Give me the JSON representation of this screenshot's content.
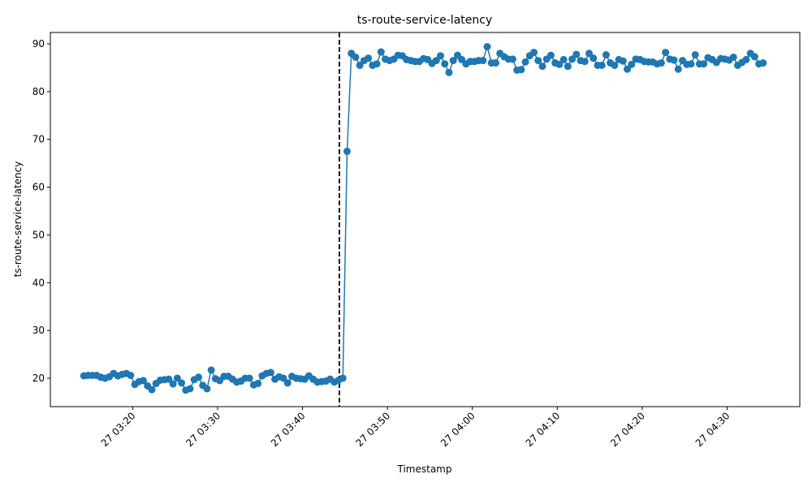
{
  "chart_data": {
    "type": "line",
    "title": "ts-route-service-latency",
    "x_label": "Timestamp",
    "y_label": "ts-route-service-latency",
    "x": [
      "27 03:14:15",
      "27 03:14:45",
      "27 03:15:15",
      "27 03:15:45",
      "27 03:16:15",
      "27 03:16:45",
      "27 03:17:15",
      "27 03:17:45",
      "27 03:18:15",
      "27 03:18:45",
      "27 03:19:15",
      "27 03:19:45",
      "27 03:20:15",
      "27 03:20:45",
      "27 03:21:15",
      "27 03:21:45",
      "27 03:22:15",
      "27 03:22:45",
      "27 03:23:15",
      "27 03:23:45",
      "27 03:24:15",
      "27 03:24:45",
      "27 03:25:15",
      "27 03:25:45",
      "27 03:26:15",
      "27 03:26:45",
      "27 03:27:15",
      "27 03:27:45",
      "27 03:28:15",
      "27 03:28:45",
      "27 03:29:15",
      "27 03:29:45",
      "27 03:30:15",
      "27 03:30:45",
      "27 03:31:15",
      "27 03:31:45",
      "27 03:32:15",
      "27 03:32:45",
      "27 03:33:15",
      "27 03:33:45",
      "27 03:34:15",
      "27 03:34:45",
      "27 03:35:15",
      "27 03:35:45",
      "27 03:36:15",
      "27 03:36:45",
      "27 03:37:15",
      "27 03:37:45",
      "27 03:38:15",
      "27 03:38:45",
      "27 03:39:15",
      "27 03:39:45",
      "27 03:40:15",
      "27 03:40:45",
      "27 03:41:15",
      "27 03:41:45",
      "27 03:42:15",
      "27 03:42:45",
      "27 03:43:15",
      "27 03:43:45",
      "27 03:44:15",
      "27 03:44:45",
      "27 03:45:15",
      "27 03:45:45",
      "27 03:46:15",
      "27 03:46:45",
      "27 03:47:15",
      "27 03:47:45",
      "27 03:48:15",
      "27 03:48:45",
      "27 03:49:15",
      "27 03:49:45",
      "27 03:50:15",
      "27 03:50:45",
      "27 03:51:15",
      "27 03:51:45",
      "27 03:52:15",
      "27 03:52:45",
      "27 03:53:15",
      "27 03:53:45",
      "27 03:54:15",
      "27 03:54:45",
      "27 03:55:15",
      "27 03:55:45",
      "27 03:56:15",
      "27 03:56:45",
      "27 03:57:15",
      "27 03:57:45",
      "27 03:58:15",
      "27 03:58:45",
      "27 03:59:15",
      "27 03:59:45",
      "27 04:00:15",
      "27 04:00:45",
      "27 04:01:15",
      "27 04:01:45",
      "27 04:02:15",
      "27 04:02:45",
      "27 04:03:15",
      "27 04:03:45",
      "27 04:04:15",
      "27 04:04:45",
      "27 04:05:15",
      "27 04:05:45",
      "27 04:06:15",
      "27 04:06:45",
      "27 04:07:15",
      "27 04:07:45",
      "27 04:08:15",
      "27 04:08:45",
      "27 04:09:15",
      "27 04:09:45",
      "27 04:10:15",
      "27 04:10:45",
      "27 04:11:15",
      "27 04:11:45",
      "27 04:12:15",
      "27 04:12:45",
      "27 04:13:15",
      "27 04:13:45",
      "27 04:14:15",
      "27 04:14:45",
      "27 04:15:15",
      "27 04:15:45",
      "27 04:16:15",
      "27 04:16:45",
      "27 04:17:15",
      "27 04:17:45",
      "27 04:18:15",
      "27 04:18:45",
      "27 04:19:15",
      "27 04:19:45",
      "27 04:20:15",
      "27 04:20:45",
      "27 04:21:15",
      "27 04:21:45",
      "27 04:22:15",
      "27 04:22:45",
      "27 04:23:15",
      "27 04:23:45",
      "27 04:24:15",
      "27 04:24:45",
      "27 04:25:15",
      "27 04:25:45",
      "27 04:26:15",
      "27 04:26:45",
      "27 04:27:15",
      "27 04:27:45",
      "27 04:28:15",
      "27 04:28:45",
      "27 04:29:15",
      "27 04:29:45",
      "27 04:30:15",
      "27 04:30:45",
      "27 04:31:15",
      "27 04:31:45",
      "27 04:32:15",
      "27 04:32:45",
      "27 04:33:15",
      "27 04:33:45",
      "27 04:34:15"
    ],
    "series": [
      {
        "color": "#1f77b4",
        "values": [
          20.5,
          20.6,
          20.6,
          20.6,
          20.2,
          20.0,
          20.3,
          21.0,
          20.5,
          20.8,
          21.0,
          20.6,
          18.7,
          19.3,
          19.5,
          18.4,
          17.6,
          18.9,
          19.6,
          19.7,
          19.8,
          18.8,
          20.0,
          19.0,
          17.5,
          17.8,
          19.7,
          20.2,
          18.5,
          17.8,
          21.7,
          19.9,
          19.5,
          20.4,
          20.4,
          19.8,
          19.2,
          19.4,
          20.0,
          20.0,
          18.6,
          18.9,
          20.5,
          21.0,
          21.2,
          19.8,
          20.3,
          20.0,
          19.0,
          20.4,
          20.0,
          19.9,
          19.8,
          20.5,
          19.8,
          19.2,
          19.3,
          19.4,
          19.8,
          19.2,
          19.6,
          20.0,
          67.5,
          88.0,
          87.2,
          85.5,
          86.5,
          87.0,
          85.5,
          85.8,
          88.3,
          86.8,
          86.5,
          86.8,
          87.6,
          87.5,
          86.7,
          86.5,
          86.3,
          86.3,
          86.9,
          86.7,
          85.9,
          86.5,
          87.5,
          85.8,
          84.0,
          86.5,
          87.6,
          86.7,
          85.8,
          86.3,
          86.3,
          86.5,
          86.5,
          89.4,
          86.0,
          86.0,
          88.0,
          87.3,
          86.8,
          86.8,
          84.5,
          84.6,
          86.2,
          87.5,
          88.2,
          86.5,
          85.3,
          86.8,
          87.6,
          86.0,
          85.7,
          86.7,
          85.3,
          86.8,
          87.8,
          86.5,
          86.3,
          88.0,
          87.0,
          85.5,
          85.5,
          87.7,
          86.0,
          85.5,
          86.7,
          86.4,
          84.7,
          85.7,
          86.8,
          86.7,
          86.3,
          86.2,
          86.2,
          85.8,
          86.0,
          88.2,
          86.8,
          86.6,
          84.7,
          86.5,
          85.7,
          85.8,
          87.7,
          85.8,
          85.8,
          87.1,
          86.7,
          86.1,
          86.9,
          86.8,
          86.6,
          87.2,
          85.5,
          86.1,
          86.7,
          88.0,
          87.3,
          85.8,
          86.0
        ]
      }
    ],
    "xlim": [
      "27 03:10:18",
      "27 04:38:34"
    ],
    "xticks": [
      "27 03:20",
      "27 03:30",
      "27 03:40",
      "27 03:50",
      "27 04:00",
      "27 04:10",
      "27 04:20",
      "27 04:30"
    ],
    "ylim": [
      14.05,
      92.38
    ],
    "yticks": [
      20,
      30,
      40,
      50,
      60,
      70,
      80,
      90
    ],
    "vline": "27 03:44:20",
    "vline_color": "#000000"
  }
}
